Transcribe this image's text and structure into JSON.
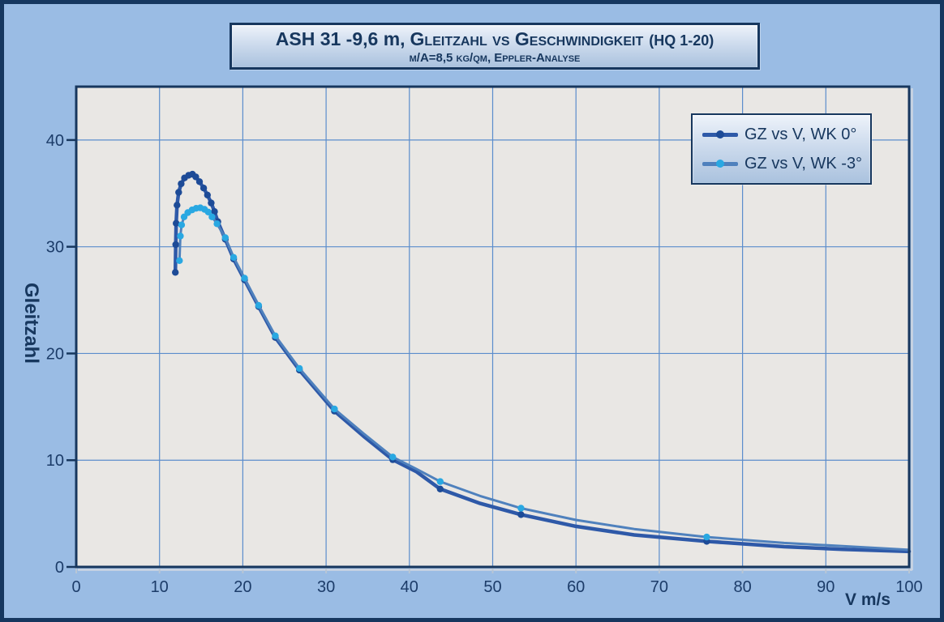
{
  "colors": {
    "page_bg": "#9abce4",
    "frame_border": "#16375f",
    "panel_border": "#17375e",
    "plot_bg": "#e9e7e4",
    "grid": "#5b8dcc",
    "axis": "#17375e",
    "tick_light": "#b9c6d4",
    "bevel": "#ccd5e1",
    "text": "#17375e"
  },
  "title": {
    "prefix": "ASH 31 -9,6 m,",
    "main": "Gleitzahl vs Geschwindigkeit",
    "suffix": "(HQ 1-20)",
    "subtitle": "m/A=8,5 kg/qm, Eppler-Analyse"
  },
  "axes": {
    "xlabel": "V m/s",
    "ylabel": "Gleitzahl"
  },
  "chart_data": {
    "type": "line",
    "title": "ASH 31 -9,6 m, Gleitzahl vs Geschwindigkeit (HQ 1-20)",
    "subtitle": "m/A=8,5 kg/qm, Eppler-Analyse",
    "xlabel": "V m/s",
    "ylabel": "Gleitzahl",
    "xlim": [
      0,
      100
    ],
    "ylim": [
      0,
      45
    ],
    "xticks": [
      0,
      10,
      20,
      30,
      40,
      50,
      60,
      70,
      80,
      90,
      100
    ],
    "yticks": [
      0,
      10,
      20,
      30,
      40
    ],
    "grid": true,
    "legend_position": "top-right",
    "series": [
      {
        "name": "GZ vs V, WK 0°",
        "line_color": "#2e59a8",
        "marker_color": "#1d4b97",
        "line_width": 4.5,
        "line_points": [
          [
            11.9,
            27.6
          ],
          [
            11.95,
            30.2
          ],
          [
            12.0,
            32.2
          ],
          [
            12.1,
            33.9
          ],
          [
            12.3,
            35.1
          ],
          [
            12.6,
            35.9
          ],
          [
            13.0,
            36.45
          ],
          [
            13.5,
            36.7
          ],
          [
            13.95,
            36.8
          ],
          [
            14.35,
            36.55
          ],
          [
            14.8,
            36.1
          ],
          [
            15.3,
            35.5
          ],
          [
            15.75,
            34.85
          ],
          [
            16.2,
            34.1
          ],
          [
            16.6,
            33.3
          ],
          [
            17.0,
            32.35
          ],
          [
            17.9,
            30.7
          ],
          [
            18.9,
            28.85
          ],
          [
            20.2,
            26.9
          ],
          [
            21.9,
            24.4
          ],
          [
            23.9,
            21.5
          ],
          [
            26.8,
            18.45
          ],
          [
            31.0,
            14.6
          ],
          [
            34.5,
            12.25
          ],
          [
            38.0,
            10.05
          ],
          [
            40.8,
            8.95
          ],
          [
            43.7,
            7.3
          ],
          [
            48.5,
            5.95
          ],
          [
            53.4,
            4.9
          ],
          [
            60.0,
            3.8
          ],
          [
            67.0,
            3.0
          ],
          [
            75.7,
            2.4
          ],
          [
            85.0,
            1.9
          ],
          [
            92.0,
            1.65
          ],
          [
            100.0,
            1.45
          ]
        ],
        "marker_points": [
          [
            11.9,
            27.6
          ],
          [
            11.95,
            30.2
          ],
          [
            12.0,
            32.2
          ],
          [
            12.1,
            33.9
          ],
          [
            12.3,
            35.1
          ],
          [
            12.6,
            35.9
          ],
          [
            13.0,
            36.45
          ],
          [
            13.5,
            36.7
          ],
          [
            13.95,
            36.8
          ],
          [
            14.35,
            36.55
          ],
          [
            14.8,
            36.1
          ],
          [
            15.3,
            35.5
          ],
          [
            15.75,
            34.85
          ],
          [
            16.2,
            34.1
          ],
          [
            16.6,
            33.3
          ],
          [
            17.0,
            32.35
          ],
          [
            17.9,
            30.7
          ],
          [
            18.9,
            28.85
          ],
          [
            20.2,
            26.9
          ],
          [
            21.9,
            24.4
          ],
          [
            23.9,
            21.5
          ],
          [
            26.8,
            18.45
          ],
          [
            31.0,
            14.6
          ],
          [
            38.0,
            10.05
          ],
          [
            43.7,
            7.3
          ],
          [
            53.4,
            4.9
          ],
          [
            75.7,
            2.4
          ]
        ]
      },
      {
        "name": "GZ vs V, WK -3°",
        "line_color": "#4f81bd",
        "marker_color": "#29a8e2",
        "line_width": 3,
        "line_points": [
          [
            12.4,
            28.7
          ],
          [
            12.5,
            31.0
          ],
          [
            12.65,
            32.05
          ],
          [
            12.95,
            32.8
          ],
          [
            13.4,
            33.2
          ],
          [
            13.9,
            33.45
          ],
          [
            14.4,
            33.6
          ],
          [
            14.9,
            33.65
          ],
          [
            15.4,
            33.5
          ],
          [
            15.85,
            33.25
          ],
          [
            16.3,
            32.8
          ],
          [
            16.9,
            32.15
          ],
          [
            17.9,
            30.85
          ],
          [
            18.9,
            29.0
          ],
          [
            20.2,
            27.05
          ],
          [
            21.9,
            24.5
          ],
          [
            23.9,
            21.65
          ],
          [
            26.8,
            18.6
          ],
          [
            31.0,
            14.8
          ],
          [
            34.5,
            12.5
          ],
          [
            38.0,
            10.3
          ],
          [
            40.8,
            9.2
          ],
          [
            43.7,
            8.0
          ],
          [
            48.5,
            6.65
          ],
          [
            53.4,
            5.5
          ],
          [
            60.0,
            4.4
          ],
          [
            67.0,
            3.55
          ],
          [
            75.7,
            2.8
          ],
          [
            85.0,
            2.25
          ],
          [
            92.0,
            1.95
          ],
          [
            100.0,
            1.6
          ]
        ],
        "marker_points": [
          [
            12.4,
            28.7
          ],
          [
            12.5,
            31.0
          ],
          [
            12.65,
            32.05
          ],
          [
            12.95,
            32.8
          ],
          [
            13.4,
            33.2
          ],
          [
            13.9,
            33.45
          ],
          [
            14.4,
            33.6
          ],
          [
            14.9,
            33.65
          ],
          [
            15.4,
            33.5
          ],
          [
            15.85,
            33.25
          ],
          [
            16.3,
            32.8
          ],
          [
            16.9,
            32.15
          ],
          [
            17.9,
            30.85
          ],
          [
            18.9,
            29.0
          ],
          [
            20.2,
            27.05
          ],
          [
            21.9,
            24.5
          ],
          [
            23.9,
            21.65
          ],
          [
            26.8,
            18.6
          ],
          [
            31.0,
            14.8
          ],
          [
            38.0,
            10.3
          ],
          [
            43.7,
            8.0
          ],
          [
            53.4,
            5.5
          ],
          [
            75.7,
            2.8
          ]
        ]
      }
    ]
  }
}
